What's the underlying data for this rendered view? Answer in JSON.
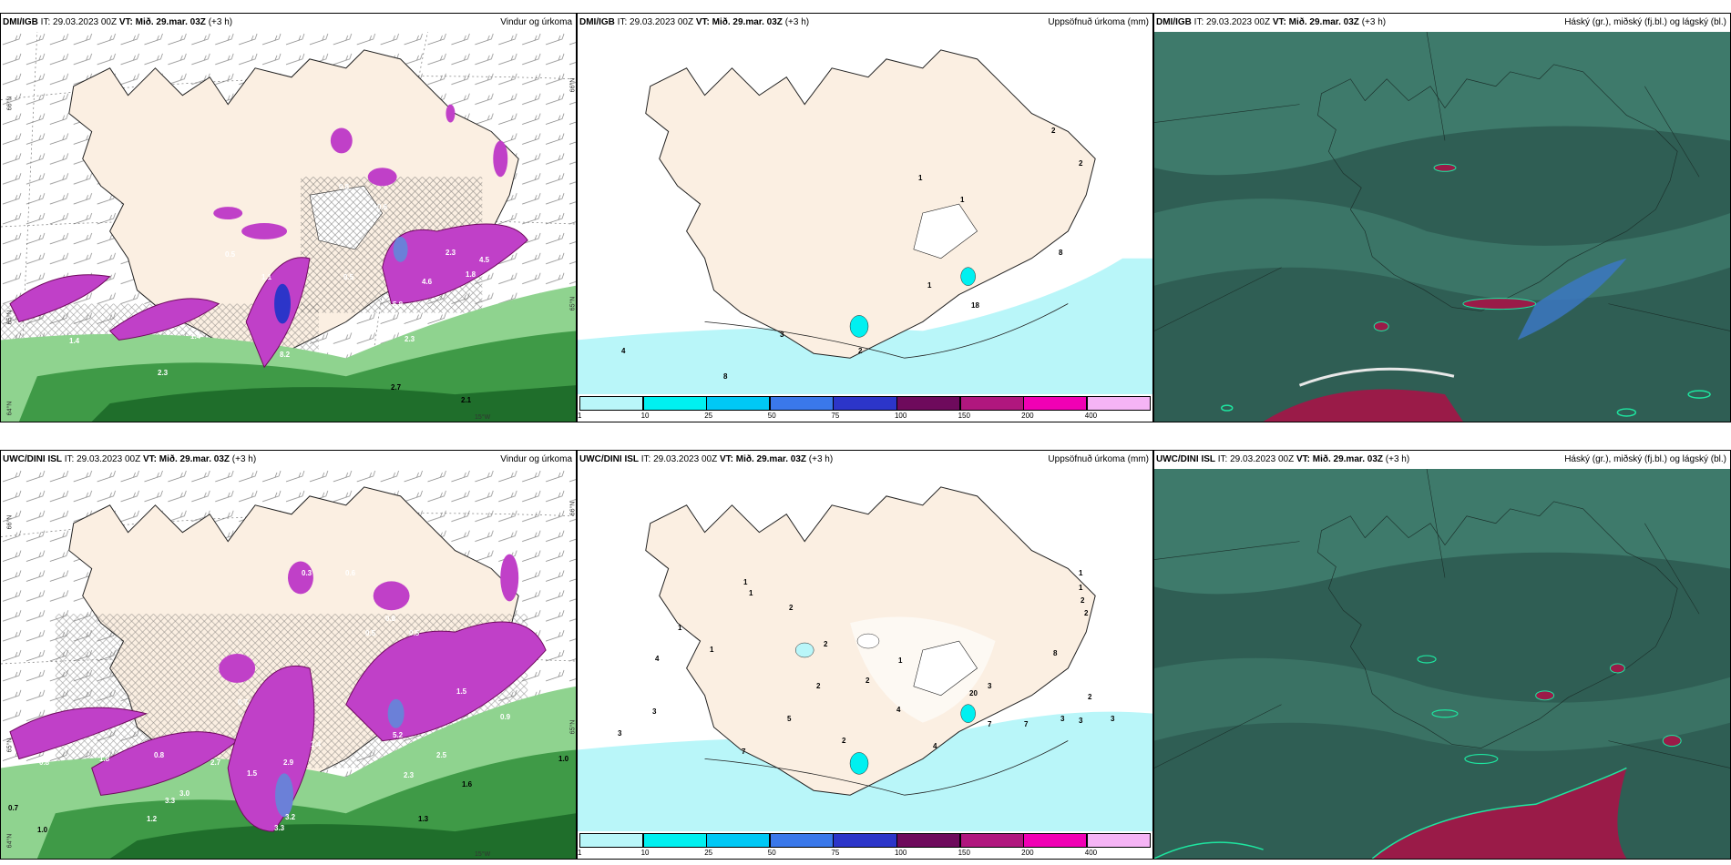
{
  "panels": {
    "p1": {
      "model": "DMI/IGB",
      "it_label": "IT:",
      "it": "29.03.2023 00Z",
      "vt_label": "VT:",
      "vt": "Mið. 29.mar. 03Z",
      "lead": "(+3 h)",
      "title": "Vindur og úrkoma"
    },
    "p2": {
      "model": "DMI/IGB",
      "it_label": "IT:",
      "it": "29.03.2023 00Z",
      "vt_label": "VT:",
      "vt": "Mið. 29.mar. 03Z",
      "lead": "(+3 h)",
      "title": "Uppsöfnuð úrkoma (mm)"
    },
    "p3": {
      "model": "DMI/IGB",
      "it_label": "IT:",
      "it": "29.03.2023 00Z",
      "vt_label": "VT:",
      "vt": "Mið. 29.mar. 03Z",
      "lead": "(+3 h)",
      "title": "Háský (gr.), miðský (fj.bl.) og lágský (bl.)"
    },
    "p4": {
      "model": "UWC/DINI ISL",
      "it_label": "IT:",
      "it": "29.03.2023 00Z",
      "vt_label": "VT:",
      "vt": "Mið. 29.mar. 03Z",
      "lead": "(+3 h)",
      "title": "Vindur og úrkoma"
    },
    "p5": {
      "model": "UWC/DINI ISL",
      "it_label": "IT:",
      "it": "29.03.2023 00Z",
      "vt_label": "VT:",
      "vt": "Mið. 29.mar. 03Z",
      "lead": "(+3 h)",
      "title": "Uppsöfnuð úrkoma (mm)"
    },
    "p6": {
      "model": "UWC/DINI ISL",
      "it_label": "IT:",
      "it": "29.03.2023 00Z",
      "vt_label": "VT:",
      "vt": "Mið. 29.mar. 03Z",
      "lead": "(+3 h)",
      "title": "Háský (gr.), miðský (fj.bl.) og lágský (bl.)"
    }
  },
  "axis_labels": {
    "lat66": "66°N",
    "lat65": "65°N",
    "lat64": "64°N",
    "lon15": "15°W"
  },
  "colorbar": {
    "ticks": [
      "1",
      "10",
      "25",
      "50",
      "75",
      "100",
      "150",
      "200",
      "400"
    ],
    "colors": [
      "#b9f6f9",
      "#00f0f0",
      "#00c8f5",
      "#3a78ea",
      "#2c35c9",
      "#6e0a5c",
      "#b0177e",
      "#f000b4",
      "#f5b4f5"
    ]
  },
  "colors": {
    "land": "#fbefe2",
    "sea": "#ffffff",
    "cloud_base": "#2f5e54",
    "cloud_mid": "#3e7a6b",
    "rain_magenta": "#c040c8",
    "rain_green": "#1f6e2b"
  },
  "labels": {
    "p1": [
      "0.8",
      "0.6",
      "0.5",
      "1.1",
      "0.5",
      "4.6",
      "5.8",
      "1.4",
      "1.4",
      "2.3",
      "8.2",
      "2.3",
      "2.7",
      "2.1",
      "2.3",
      "4.5",
      "1.8"
    ],
    "p2": [
      "2",
      "2",
      "1",
      "1",
      "8",
      "1",
      "18",
      "3",
      "2",
      "4",
      "8"
    ],
    "p4": [
      "0.8",
      "1.8",
      "0.8",
      "2.7",
      "3.3",
      "3.0",
      "1.2",
      "2.9",
      "3.2",
      "3.3",
      "1.5",
      "1.4",
      "2.3",
      "0.3",
      "0.6",
      "0.8",
      "0.5",
      "1.5",
      "0.9",
      "1.0",
      "0.5",
      "0.7",
      "5.2",
      "2.5",
      "1.6",
      "1.3",
      "0.7",
      "1.0"
    ],
    "p5": [
      "1",
      "1",
      "2",
      "2",
      "1",
      "1",
      "2",
      "1",
      "1",
      "4",
      "2",
      "20",
      "3",
      "2",
      "3",
      "7",
      "5",
      "4",
      "3",
      "3",
      "7",
      "3",
      "4",
      "8",
      "3",
      "2",
      "7",
      "2",
      "2",
      "1"
    ]
  }
}
